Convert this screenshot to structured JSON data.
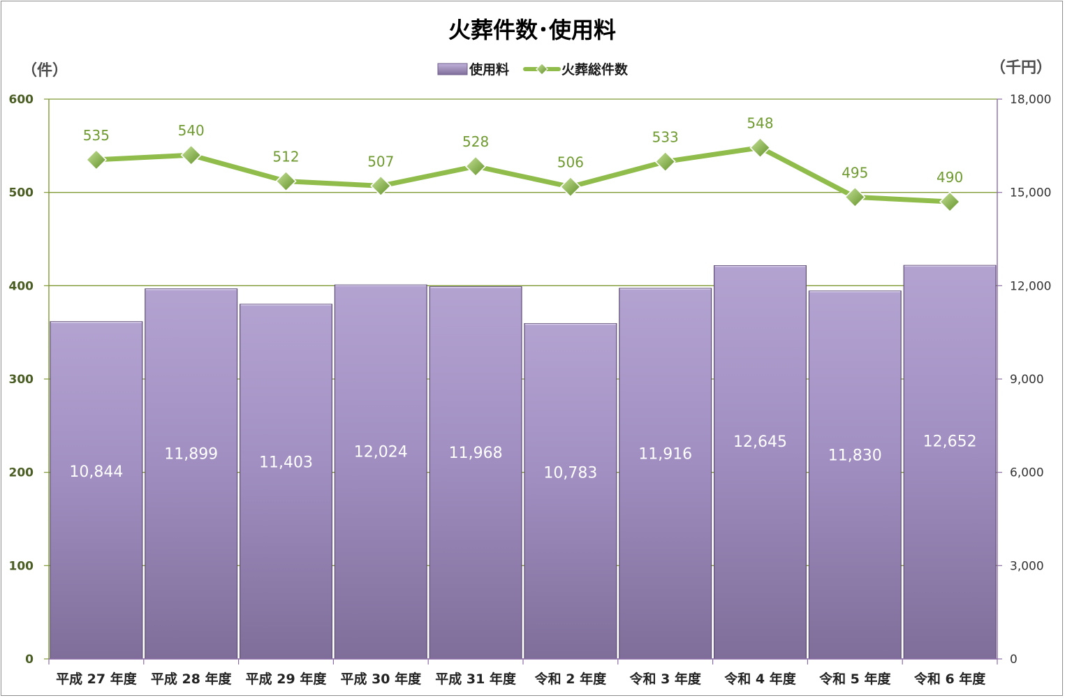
{
  "chart_data": {
    "type": "bar",
    "title": "火葬件数･使用料",
    "categories": [
      "平成 27 年度",
      "平成 28 年度",
      "平成 29 年度",
      "平成 30 年度",
      "平成 31 年度",
      "令和 2 年度",
      "令和 3 年度",
      "令和 4 年度",
      "令和 5 年度",
      "令和 6 年度"
    ],
    "series": [
      {
        "name": "使用料",
        "type": "bar",
        "axis": "right",
        "values": [
          10844,
          11899,
          11403,
          12024,
          11968,
          10783,
          11916,
          12645,
          11830,
          12652
        ],
        "labels": [
          "10,844",
          "11,899",
          "11,403",
          "12,024",
          "11,968",
          "10,783",
          "11,916",
          "12,645",
          "11,830",
          "12,652"
        ],
        "color": "#9b87b8"
      },
      {
        "name": "火葬総件数",
        "type": "line",
        "axis": "left",
        "values": [
          535,
          540,
          512,
          507,
          528,
          506,
          533,
          548,
          495,
          490
        ],
        "labels": [
          "535",
          "540",
          "512",
          "507",
          "528",
          "506",
          "533",
          "548",
          "495",
          "490"
        ],
        "color": "#8fbc4a"
      }
    ],
    "y_left": {
      "unit": "（件）",
      "range": [
        0,
        600
      ],
      "ticks": [
        "0",
        "100",
        "200",
        "300",
        "400",
        "500",
        "600"
      ]
    },
    "y_right": {
      "unit": "（千円）",
      "range": [
        0,
        18000
      ],
      "ticks": [
        "0",
        "3,000",
        "6,000",
        "9,000",
        "12,000",
        "15,000",
        "18,000"
      ]
    },
    "legend_position": "top-center",
    "grid": true
  }
}
